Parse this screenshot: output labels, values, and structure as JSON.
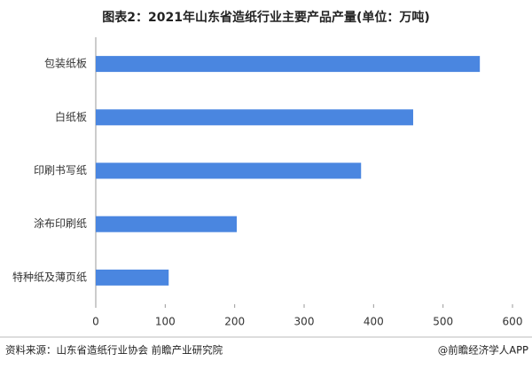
{
  "chart_data": {
    "type": "bar",
    "title": "图表2：2021年山东省造纸行业主要产品产量(单位：万吨)",
    "categories": [
      "包装纸板",
      "白纸板",
      "印刷书写纸",
      "涂布印刷纸",
      "特种纸及薄页纸"
    ],
    "values": [
      553,
      457,
      382,
      203,
      105
    ],
    "color": "#4a86e0",
    "xlim": [
      0,
      600
    ],
    "xticks": [
      0,
      100,
      200,
      300,
      400,
      500,
      600
    ]
  },
  "source": "资料来源：山东省造纸行业协会 前瞻产业研究院",
  "brand": "@前瞻经济学人APP"
}
